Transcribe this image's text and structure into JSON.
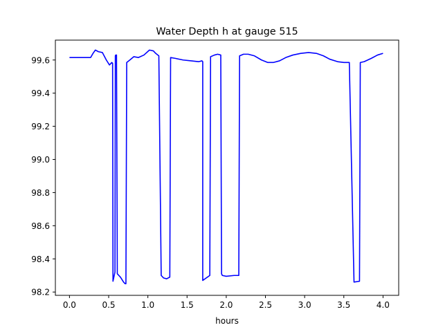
{
  "chart_data": {
    "type": "line",
    "title": "Water Depth h at gauge 515",
    "xlabel": "hours",
    "ylabel": "",
    "xlim": [
      -0.18,
      4.2
    ],
    "ylim": [
      98.18,
      99.72
    ],
    "grid": false,
    "x_ticks": [
      0.0,
      0.5,
      1.0,
      1.5,
      2.0,
      2.5,
      3.0,
      3.5,
      4.0
    ],
    "x_tick_labels": [
      "0.0",
      "0.5",
      "1.0",
      "1.5",
      "2.0",
      "2.5",
      "3.0",
      "3.5",
      "4.0"
    ],
    "y_ticks": [
      98.2,
      98.4,
      98.6,
      98.8,
      99.0,
      99.2,
      99.4,
      99.6
    ],
    "y_tick_labels": [
      "98.2",
      "98.4",
      "98.6",
      "98.8",
      "99.0",
      "99.2",
      "99.4",
      "99.6"
    ],
    "series": [
      {
        "color": "#0000ff",
        "x": [
          0.0,
          0.27,
          0.3,
          0.33,
          0.37,
          0.42,
          0.47,
          0.51,
          0.54,
          0.55,
          0.555,
          0.58,
          0.585,
          0.59,
          0.6,
          0.61,
          0.65,
          0.69,
          0.71,
          0.72,
          0.73,
          0.77,
          0.82,
          0.88,
          0.95,
          1.02,
          1.07,
          1.1,
          1.14,
          1.17,
          1.2,
          1.24,
          1.28,
          1.29,
          1.35,
          1.45,
          1.55,
          1.65,
          1.69,
          1.7,
          1.7,
          1.79,
          1.8,
          1.85,
          1.89,
          1.93,
          1.94,
          1.95,
          2.0,
          2.1,
          2.16,
          2.17,
          2.22,
          2.28,
          2.36,
          2.45,
          2.53,
          2.6,
          2.68,
          2.76,
          2.85,
          2.95,
          3.05,
          3.15,
          3.24,
          3.32,
          3.42,
          3.5,
          3.57,
          3.63,
          3.63,
          3.7,
          3.71,
          3.76,
          3.85,
          3.93,
          4.0
        ],
        "y": [
          99.615,
          99.615,
          99.64,
          99.66,
          99.65,
          99.645,
          99.6,
          99.57,
          99.585,
          99.58,
          98.265,
          98.32,
          99.625,
          99.63,
          99.63,
          98.31,
          98.29,
          98.26,
          98.25,
          98.25,
          99.585,
          99.6,
          99.62,
          99.615,
          99.63,
          99.66,
          99.655,
          99.64,
          99.625,
          98.3,
          98.285,
          98.28,
          98.29,
          99.615,
          99.61,
          99.6,
          99.595,
          99.59,
          99.595,
          99.59,
          98.27,
          98.3,
          99.62,
          99.63,
          99.635,
          99.63,
          98.31,
          98.3,
          98.295,
          98.3,
          98.3,
          99.625,
          99.635,
          99.635,
          99.625,
          99.6,
          99.585,
          99.585,
          99.595,
          99.615,
          99.63,
          99.64,
          99.645,
          99.64,
          99.625,
          99.605,
          99.59,
          99.585,
          99.585,
          98.26,
          98.26,
          98.265,
          99.585,
          99.59,
          99.61,
          99.63,
          99.64
        ]
      }
    ]
  }
}
